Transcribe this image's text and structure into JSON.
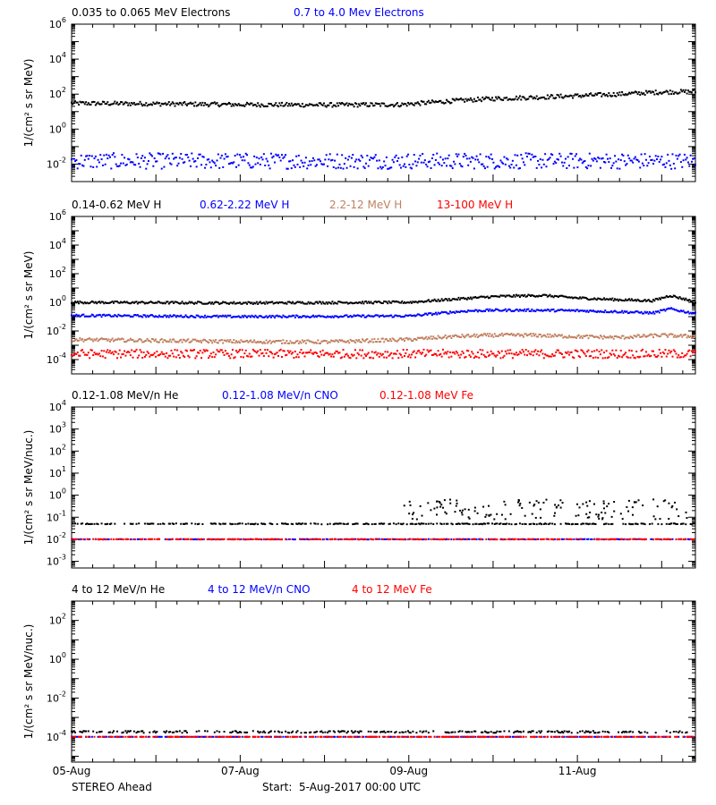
{
  "footer": {
    "spacecraft": "STEREO Ahead",
    "start_label": "Start:",
    "start_value": "5-Aug-2017 00:00 UTC"
  },
  "chart_data": [
    {
      "type": "scatter",
      "panel": "electrons",
      "ylabel": "1/(cm² s sr MeV)",
      "yscale": "log",
      "ylim": [
        0.001,
        1000000
      ],
      "yticks": [
        {
          "b": "10",
          "e": "-2"
        },
        {
          "b": "10",
          "e": "0"
        },
        {
          "b": "10",
          "e": "2"
        },
        {
          "b": "10",
          "e": "4"
        },
        {
          "b": "10",
          "e": "6"
        }
      ],
      "x_range_days": [
        0,
        7.4
      ],
      "series": [
        {
          "name": "0.035 to 0.065 MeV Electrons",
          "color": "#000000",
          "x": [
            0,
            1,
            2,
            3,
            3.9,
            4.5,
            5,
            5.5,
            6,
            6.5,
            7,
            7.4
          ],
          "y": [
            30,
            28,
            25,
            24,
            25,
            40,
            55,
            65,
            80,
            100,
            130,
            140
          ],
          "scatter": 0.12
        },
        {
          "name": "0.7 to 4.0 Mev Electrons",
          "color": "#0000ff",
          "x": [
            0,
            7.4
          ],
          "y": [
            0.015,
            0.015
          ],
          "scatter": 0.45
        }
      ]
    },
    {
      "type": "scatter",
      "panel": "protons",
      "ylabel": "1/(cm² s sr MeV)",
      "yscale": "log",
      "ylim": [
        1e-05,
        1000000
      ],
      "yticks": [
        {
          "b": "10",
          "e": "-4"
        },
        {
          "b": "10",
          "e": "-2"
        },
        {
          "b": "10",
          "e": "0"
        },
        {
          "b": "10",
          "e": "2"
        },
        {
          "b": "10",
          "e": "4"
        },
        {
          "b": "10",
          "e": "6"
        }
      ],
      "x_range_days": [
        0,
        7.4
      ],
      "series": [
        {
          "name": "0.14-0.62 MeV H",
          "color": "#000000",
          "x": [
            0,
            2,
            4,
            4.5,
            5,
            5.3,
            5.6,
            6,
            6.5,
            6.9,
            7.1,
            7.4
          ],
          "y": [
            1,
            0.9,
            1,
            1.6,
            2.5,
            2.8,
            3,
            2,
            1.5,
            1.3,
            3,
            1.1
          ],
          "scatter": 0.08
        },
        {
          "name": "0.62-2.22 MeV H",
          "color": "#0000ff",
          "x": [
            0,
            2,
            4,
            4.4,
            4.7,
            5,
            5.5,
            6,
            6.5,
            6.9,
            7.1,
            7.4
          ],
          "y": [
            0.12,
            0.1,
            0.11,
            0.18,
            0.25,
            0.28,
            0.28,
            0.26,
            0.22,
            0.18,
            0.35,
            0.16
          ],
          "scatter": 0.08
        },
        {
          "name": "2.2-12 MeV H",
          "color": "#c08060",
          "x": [
            0,
            2,
            3,
            4,
            4.5,
            5,
            5.5,
            6,
            6.5,
            7,
            7.4
          ],
          "y": [
            0.0025,
            0.0018,
            0.0017,
            0.0025,
            0.004,
            0.005,
            0.005,
            0.004,
            0.0035,
            0.005,
            0.004
          ],
          "scatter": 0.12
        },
        {
          "name": "13-100 MeV H",
          "color": "#ff0000",
          "x": [
            0,
            7.4
          ],
          "y": [
            0.00025,
            0.00025
          ],
          "scatter": 0.3
        }
      ]
    },
    {
      "type": "scatter",
      "panel": "heavy-low",
      "ylabel": "1/(cm² s sr MeV/nuc.)",
      "yscale": "log",
      "ylim": [
        0.0005,
        10000
      ],
      "yticks": [
        {
          "b": "10",
          "e": "-3"
        },
        {
          "b": "10",
          "e": "-2"
        },
        {
          "b": "10",
          "e": "-1"
        },
        {
          "b": "10",
          "e": "0"
        },
        {
          "b": "10",
          "e": "1"
        },
        {
          "b": "10",
          "e": "2"
        },
        {
          "b": "10",
          "e": "3"
        },
        {
          "b": "10",
          "e": "4"
        }
      ],
      "x_range_days": [
        0,
        7.4
      ],
      "series": [
        {
          "name": "0.12-1.08 MeV/n He",
          "color": "#000000",
          "x": [
            0,
            7.4
          ],
          "y": [
            0.05,
            0.05
          ],
          "scatter": 0.02,
          "extra_x": [
            3.9,
            7.3
          ],
          "extra_y": [
            0.15,
            0.15
          ]
        },
        {
          "name": "0.12-1.08 MeV/n CNO",
          "color": "#0000ff",
          "x": [
            0,
            7.4
          ],
          "y": [
            0.01,
            0.01
          ],
          "scatter": 0.01
        },
        {
          "name": "0.12-1.08 MeV Fe",
          "color": "#ff0000",
          "x": [
            0,
            7.4
          ],
          "y": [
            0.01,
            0.01
          ],
          "scatter": 0.01
        }
      ]
    },
    {
      "type": "scatter",
      "panel": "heavy-high",
      "ylabel": "1/(cm² s sr MeV/nuc.)",
      "yscale": "log",
      "ylim": [
        5e-06,
        1000
      ],
      "yticks": [
        {
          "b": "10",
          "e": "-4"
        },
        {
          "b": "10",
          "e": "-2"
        },
        {
          "b": "10",
          "e": "0"
        },
        {
          "b": "10",
          "e": "2"
        }
      ],
      "x_range_days": [
        0,
        7.4
      ],
      "series": [
        {
          "name": "4 to 12 MeV/n He",
          "color": "#000000",
          "x": [
            0,
            7.4
          ],
          "y": [
            0.00018,
            0.00018
          ],
          "scatter": 0.05
        },
        {
          "name": "4 to 12 MeV/n CNO",
          "color": "#0000ff",
          "x": [
            0,
            7.4
          ],
          "y": [
            0.0001,
            0.0001
          ],
          "scatter": 0.0
        },
        {
          "name": "4 to 12 MeV Fe",
          "color": "#ff0000",
          "x": [
            0,
            7.4
          ],
          "y": [
            0.0001,
            0.0001
          ],
          "scatter": 0.0
        }
      ]
    }
  ],
  "x_axis": {
    "ticks": [
      {
        "label": "05-Aug",
        "day": 0
      },
      {
        "label": "07-Aug",
        "day": 2
      },
      {
        "label": "09-Aug",
        "day": 4
      },
      {
        "label": "11-Aug",
        "day": 6
      }
    ]
  }
}
